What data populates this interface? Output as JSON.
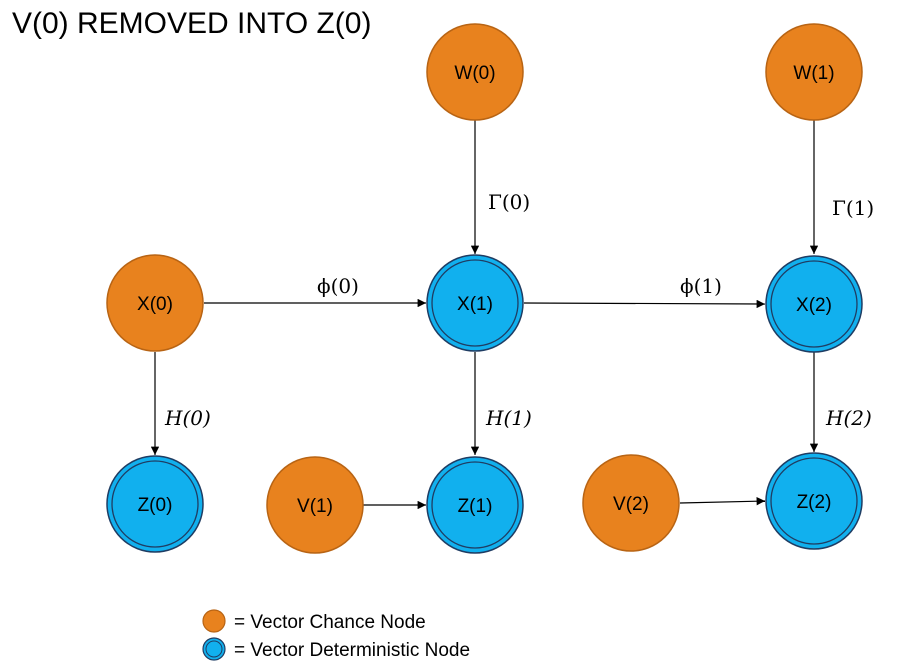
{
  "title": "V(0) REMOVED INTO Z(0)",
  "colors": {
    "chance_fill": "#E8821E",
    "chance_stroke": "#B86414",
    "deterministic_fill": "#11B0EE",
    "deterministic_stroke": "#1F3D63",
    "edge": "#000000"
  },
  "nodes": {
    "w0": {
      "label": "W(0)",
      "kind": "chance"
    },
    "w1": {
      "label": "W(1)",
      "kind": "chance"
    },
    "x0": {
      "label": "X(0)",
      "kind": "chance"
    },
    "x1": {
      "label": "X(1)",
      "kind": "deterministic"
    },
    "x2": {
      "label": "X(2)",
      "kind": "deterministic"
    },
    "z0": {
      "label": "Z(0)",
      "kind": "deterministic"
    },
    "z1": {
      "label": "Z(1)",
      "kind": "deterministic"
    },
    "z2": {
      "label": "Z(2)",
      "kind": "deterministic"
    },
    "v1": {
      "label": "V(1)",
      "kind": "chance"
    },
    "v2": {
      "label": "V(2)",
      "kind": "chance"
    }
  },
  "edges": {
    "w0_x1": {
      "from": "W(0)",
      "to": "X(1)",
      "label": "Γ(0)"
    },
    "w1_x2": {
      "from": "W(1)",
      "to": "X(2)",
      "label": "Γ(1)"
    },
    "x0_x1": {
      "from": "X(0)",
      "to": "X(1)",
      "label": "ϕ(0)"
    },
    "x1_x2": {
      "from": "X(1)",
      "to": "X(2)",
      "label": "ϕ(1)"
    },
    "x0_z0": {
      "from": "X(0)",
      "to": "Z(0)",
      "label": "H(0)"
    },
    "x1_z1": {
      "from": "X(1)",
      "to": "Z(1)",
      "label": "H(1)"
    },
    "x2_z2": {
      "from": "X(2)",
      "to": "Z(2)",
      "label": "H(2)"
    },
    "v1_z1": {
      "from": "V(1)",
      "to": "Z(1)",
      "label": ""
    },
    "v2_z2": {
      "from": "V(2)",
      "to": "Z(2)",
      "label": ""
    }
  },
  "legend": {
    "chance": "= Vector Chance Node",
    "deterministic": "= Vector Deterministic Node"
  }
}
